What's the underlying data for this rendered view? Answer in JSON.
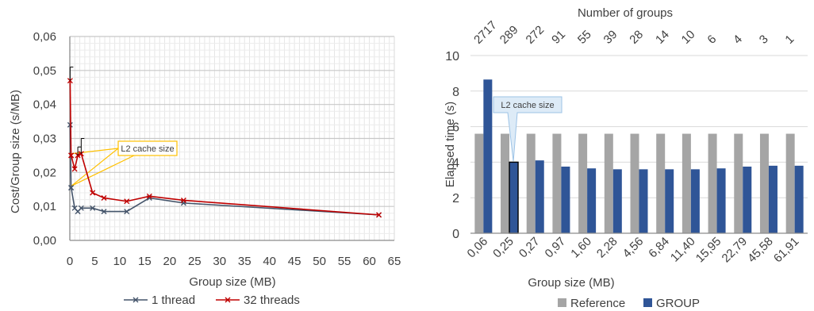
{
  "chart_data": [
    {
      "type": "line",
      "xlabel": "Group size (MB)",
      "ylabel": "Cost/Group size (s/MB)",
      "xlim": [
        0,
        65
      ],
      "ylim": [
        0,
        0.06
      ],
      "x_ticks": [
        "0",
        "5",
        "10",
        "15",
        "20",
        "25",
        "30",
        "35",
        "40",
        "45",
        "50",
        "55",
        "60",
        "65"
      ],
      "y_ticks": [
        "0,00",
        "0,01",
        "0,02",
        "0,03",
        "0,04",
        "0,05",
        "0,06"
      ],
      "grid": true,
      "legend": "bottom",
      "annotation": "L2 cache size",
      "series": [
        {
          "name": "1 thread",
          "color": "#44546A",
          "x": [
            0.06,
            0.25,
            0.27,
            0.97,
            1.6,
            2.28,
            4.56,
            6.84,
            11.4,
            15.95,
            22.79,
            61.91
          ],
          "y": [
            0.034,
            0.0155,
            0.0155,
            0.0095,
            0.0085,
            0.0095,
            0.0095,
            0.0085,
            0.0085,
            0.0125,
            0.011,
            0.0075
          ]
        },
        {
          "name": "32 threads",
          "color": "#C00000",
          "x": [
            0.06,
            0.25,
            0.27,
            0.97,
            1.6,
            2.28,
            4.56,
            6.84,
            11.4,
            15.95,
            22.79,
            61.91
          ],
          "y": [
            0.047,
            0.025,
            0.025,
            0.021,
            0.025,
            0.0255,
            0.014,
            0.0125,
            0.0115,
            0.013,
            0.0118,
            0.0075
          ],
          "error_bars": [
            {
              "x": 0.06,
              "low": 0.047,
              "high": 0.051
            },
            {
              "x": 1.6,
              "low": 0.025,
              "high": 0.0275
            },
            {
              "x": 2.28,
              "low": 0.0255,
              "high": 0.03
            }
          ]
        }
      ]
    },
    {
      "type": "bar",
      "xlabel": "Group size (MB)",
      "ylabel": "Elapsed time (s)",
      "top_axis_label": "Number of groups",
      "ylim": [
        0,
        10
      ],
      "y_ticks": [
        "0",
        "2",
        "4",
        "6",
        "8",
        "10"
      ],
      "grid": true,
      "legend": "bottom",
      "annotation": "L2 cache size",
      "categories": [
        "0,06",
        "0,25",
        "0,27",
        "0,97",
        "1,60",
        "2,28",
        "4,56",
        "6,84",
        "11,40",
        "15,95",
        "22,79",
        "45,58",
        "61,91"
      ],
      "top_categories": [
        "2717",
        "289",
        "272",
        "91",
        "55",
        "39",
        "28",
        "14",
        "10",
        "6",
        "4",
        "3",
        "1"
      ],
      "highlighted_index": 1,
      "series": [
        {
          "name": "Reference",
          "color": "#A5A5A5",
          "values": [
            5.6,
            5.6,
            5.6,
            5.6,
            5.6,
            5.6,
            5.6,
            5.6,
            5.6,
            5.6,
            5.6,
            5.6,
            5.6
          ]
        },
        {
          "name": "GROUP",
          "color": "#2F5597",
          "values": [
            8.65,
            4.0,
            4.1,
            3.75,
            3.65,
            3.6,
            3.6,
            3.6,
            3.6,
            3.65,
            3.75,
            3.8,
            3.8
          ]
        }
      ]
    }
  ]
}
